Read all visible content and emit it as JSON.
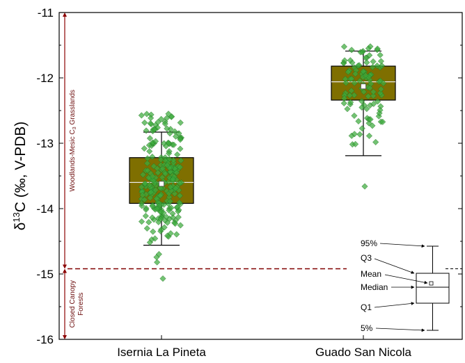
{
  "chart_data": {
    "type": "box",
    "ylabel_parts": {
      "main": "δ",
      "sup": "13",
      "rest": "C (‰,  V-PDB)"
    },
    "ylim": [
      -16,
      -11
    ],
    "yticks": [
      {
        "value": -11,
        "label": "-11"
      },
      {
        "value": -12,
        "label": "-12"
      },
      {
        "value": -13,
        "label": "-13"
      },
      {
        "value": -14,
        "label": "-14"
      },
      {
        "value": -15,
        "label": "-15"
      },
      {
        "value": -16,
        "label": "-16"
      }
    ],
    "categories": [
      "Isernia La Pineta",
      "Guado San Nicola"
    ],
    "boxes": [
      {
        "category": "Isernia La Pineta",
        "p5": -14.56,
        "q1": -13.92,
        "median": -13.6,
        "mean": -13.62,
        "q3": -13.22,
        "p95": -12.83,
        "n_points": 230,
        "min": -15.07,
        "max": -12.55
      },
      {
        "category": "Guado San Nicola",
        "p5": -13.19,
        "q1": -12.34,
        "median": -12.06,
        "mean": -12.13,
        "q3": -11.82,
        "p95": -11.59,
        "n_points": 100,
        "min": -13.66,
        "max": -11.52
      }
    ],
    "threshold": {
      "value": -14.92,
      "style": "dashed"
    },
    "zones": [
      {
        "label_parts": {
          "main": "Woodlands-Mesic C",
          "sub": "3",
          "rest": " Grasslands"
        },
        "from": -14.92,
        "to": -11
      },
      {
        "label_lines": [
          "Closed Canopy",
          "Forests"
        ],
        "from": -16,
        "to": -14.92
      }
    ],
    "legend_box": {
      "labels": {
        "p95": "95%",
        "q3": "Q3",
        "mean": "Mean",
        "median": "Median",
        "q1": "Q1",
        "p5": "5%"
      }
    },
    "colors": {
      "box_fill": "#7f6f00",
      "point_fill": "#3cab3c",
      "point_stroke": "#1e6e1e",
      "threshold": "#800000",
      "zone_arrow": "#8b0000",
      "zone_text": "#6e1010",
      "axis": "#000000"
    }
  }
}
